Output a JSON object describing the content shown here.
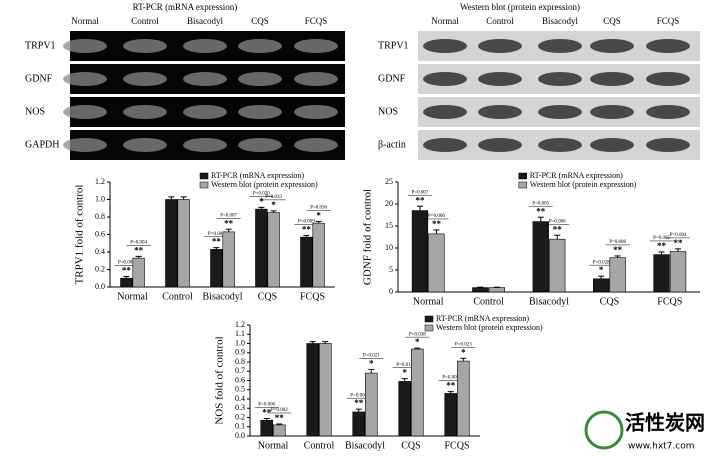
{
  "gels": [
    {
      "title": "RT-PCR (mRNA expression)",
      "lanes": [
        "Normal",
        "Control",
        "Bisacodyl",
        "CQS",
        "FCQS"
      ],
      "rows": [
        "TRPV1",
        "GDNF",
        "NOS",
        "GAPDH"
      ]
    },
    {
      "title": "Western blot (protein expression)",
      "lanes": [
        "Normal",
        "Control",
        "Bisacodyl",
        "CQS",
        "FCQS"
      ],
      "rows": [
        "TRPV1",
        "GDNF",
        "NOS",
        "β-actin"
      ]
    }
  ],
  "chart_data": [
    {
      "type": "bar",
      "y_label": "TRPV1 fold of control",
      "categories": [
        "Normal",
        "Control",
        "Bisacodyl",
        "CQS",
        "FCQS"
      ],
      "ylim": [
        0,
        1.2
      ],
      "yticks": [
        {
          "value": 0,
          "label": "0.0"
        },
        {
          "value": 0.2,
          "label": "0.2"
        },
        {
          "value": 0.4,
          "label": "0.4"
        },
        {
          "value": 0.6,
          "label": "0.6"
        },
        {
          "value": 0.8,
          "label": "0.8"
        },
        {
          "value": 1,
          "label": "1.0"
        },
        {
          "value": 1.2,
          "label": "1.2"
        }
      ],
      "legend": "upper center",
      "series": [
        {
          "name": "RT-PCR (mRNA expression)",
          "color": "#1a1a1a",
          "values": [
            0.1,
            1.0,
            0.43,
            0.89,
            0.57
          ],
          "errors": [
            0.02,
            0.03,
            0.02,
            0.02,
            0.02
          ],
          "stars": [
            "**",
            null,
            "**",
            "*",
            "**"
          ],
          "p_labels": [
            "P=0.008",
            null,
            "P=0.005",
            "P=0.020",
            "P=0.009"
          ]
        },
        {
          "name": "Western blot (protein expression)",
          "color": "#a6a6a6",
          "values": [
            0.33,
            1.0,
            0.63,
            0.85,
            0.73
          ],
          "errors": [
            0.02,
            0.03,
            0.03,
            0.02,
            0.02
          ],
          "stars": [
            "**",
            null,
            "**",
            "*",
            "*"
          ],
          "p_labels": [
            "P=0.004",
            null,
            "P=0.007",
            "P=0.033",
            "P=0.036"
          ]
        }
      ]
    },
    {
      "type": "bar",
      "y_label": "GDNF fold of control",
      "categories": [
        "Normal",
        "Control",
        "Bisacodyl",
        "CQS",
        "FCQS"
      ],
      "ylim": [
        0,
        25
      ],
      "yticks": [
        0,
        5,
        10,
        15,
        20,
        25
      ],
      "legend": "upper center",
      "series": [
        {
          "name": "RT-PCR (mRNA expression)",
          "color": "#1a1a1a",
          "values": [
            18.5,
            1.0,
            16,
            3.0,
            8.5
          ],
          "errors": [
            1.0,
            0.1,
            1.0,
            0.6,
            0.6
          ],
          "stars": [
            "**",
            null,
            "**",
            "*",
            "**"
          ],
          "p_labels": [
            "P=0.007",
            null,
            "P=0.005",
            "P=0.028",
            "P=0.005"
          ]
        },
        {
          "name": "Western blot (protein expression)",
          "color": "#a6a6a6",
          "values": [
            13.2,
            1.0,
            12,
            7.8,
            9.2
          ],
          "errors": [
            0.9,
            0.1,
            0.9,
            0.4,
            0.6
          ],
          "stars": [
            "**",
            null,
            "**",
            "**",
            "**"
          ],
          "p_labels": [
            "P=0.006",
            null,
            "P=0.006",
            "P=0.008",
            "P=0.004"
          ]
        }
      ]
    },
    {
      "type": "bar",
      "y_label": "NOS fold of control",
      "categories": [
        "Normal",
        "Control",
        "Bisacodyl",
        "CQS",
        "FCQS"
      ],
      "ylim": [
        0,
        1.2
      ],
      "yticks": [
        {
          "value": 0,
          "label": "0.0"
        },
        {
          "value": 0.1,
          "label": "0.1"
        },
        {
          "value": 0.2,
          "label": "0.2"
        },
        {
          "value": 0.3,
          "label": "0.3"
        },
        {
          "value": 0.4,
          "label": "0.4"
        },
        {
          "value": 0.5,
          "label": "0.5"
        },
        {
          "value": 0.6,
          "label": "0.6"
        },
        {
          "value": 0.7,
          "label": "0.7"
        },
        {
          "value": 0.8,
          "label": "0.8"
        },
        {
          "value": 0.9,
          "label": "0.9"
        },
        {
          "value": 1,
          "label": "1.0"
        },
        {
          "value": 1.1,
          "label": "1.1"
        },
        {
          "value": 1.2,
          "label": "1.2"
        }
      ],
      "legend": "upper right",
      "series": [
        {
          "name": "RT-PCR (mRNA expression)",
          "color": "#1a1a1a",
          "values": [
            0.17,
            1.0,
            0.26,
            0.59,
            0.46
          ],
          "errors": [
            0.02,
            0.02,
            0.03,
            0.03,
            0.02
          ],
          "stars": [
            "**",
            null,
            "**",
            "*",
            "**"
          ],
          "p_labels": [
            "P=0.006",
            null,
            "P=0.004",
            "P=0.019",
            "P=0.009"
          ]
        },
        {
          "name": "Western blot (protein expression)",
          "color": "#a6a6a6",
          "values": [
            0.12,
            1.0,
            0.68,
            0.94,
            0.81
          ],
          "errors": [
            0.01,
            0.02,
            0.04,
            0.01,
            0.03
          ],
          "stars": [
            "**",
            null,
            "*",
            "*",
            "*"
          ],
          "p_labels": [
            "P=0.002",
            null,
            "P=0.021",
            "P=0.038",
            "P=0.023"
          ]
        }
      ]
    }
  ],
  "watermark": {
    "title": "活性炭网",
    "url": "www.hxt7.com"
  }
}
